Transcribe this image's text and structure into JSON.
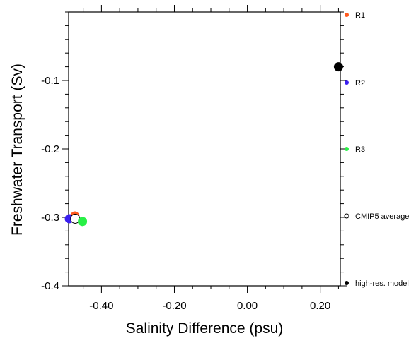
{
  "chart_data": {
    "type": "scatter",
    "xlabel": "Salinity Difference (psu)",
    "ylabel": "Freshwater Transport (Sv)",
    "xlim": [
      -0.49,
      0.255
    ],
    "ylim": [
      -0.4,
      0.0
    ],
    "x_major_ticks": [
      -0.4,
      -0.2,
      0.0,
      0.2
    ],
    "x_tick_labels": [
      "-0.40",
      "-0.20",
      "0.00",
      "0.20"
    ],
    "y_major_ticks": [
      -0.1,
      -0.2,
      -0.3,
      -0.4
    ],
    "y_tick_labels": [
      "-0.1",
      "-0.2",
      "-0.3",
      "-0.4"
    ],
    "grid": false,
    "legend_position": "right",
    "series": [
      {
        "name": "R1",
        "color": "#ff5a1e",
        "filled": true,
        "x": -0.473,
        "y": -0.298
      },
      {
        "name": "R2",
        "color": "#3a1ff0",
        "filled": true,
        "x": -0.488,
        "y": -0.302
      },
      {
        "name": "R3",
        "color": "#28f046",
        "filled": true,
        "x": -0.452,
        "y": -0.306
      },
      {
        "name": "CMIP5 average",
        "color": "#000000",
        "filled": false,
        "x": -0.472,
        "y": -0.302
      },
      {
        "name": "high-res. model",
        "color": "#000000",
        "filled": true,
        "x": 0.25,
        "y": -0.08
      }
    ]
  }
}
